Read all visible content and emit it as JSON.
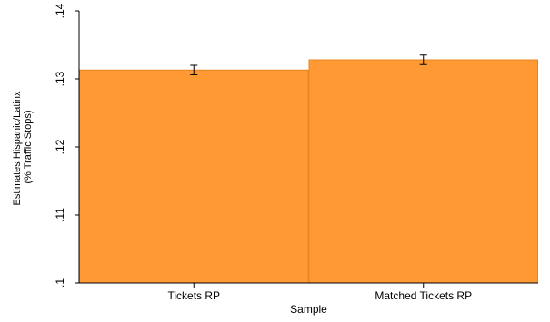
{
  "chart_data": {
    "type": "bar",
    "categories": [
      "Tickets RP",
      "Matched Tickets RP"
    ],
    "values": [
      0.1313,
      0.1328
    ],
    "error_bars": [
      {
        "low": 0.1306,
        "high": 0.132
      },
      {
        "low": 0.1321,
        "high": 0.1335
      }
    ],
    "xlabel": "Sample",
    "ylabel_lines": [
      "Estimates Hispanic/Latinx",
      "(% Traffic Stops)"
    ],
    "ylim": [
      0.1,
      0.14
    ],
    "yticks": [
      0.1,
      0.11,
      0.12,
      0.13,
      0.14
    ],
    "ytick_labels": [
      ".1",
      ".11",
      ".12",
      ".13",
      ".14"
    ],
    "grid": false,
    "colors": {
      "bar_fill": "#FF9933",
      "bar_stroke": "#E8861F",
      "axis": "#000000",
      "error_bar": "#000000"
    }
  }
}
